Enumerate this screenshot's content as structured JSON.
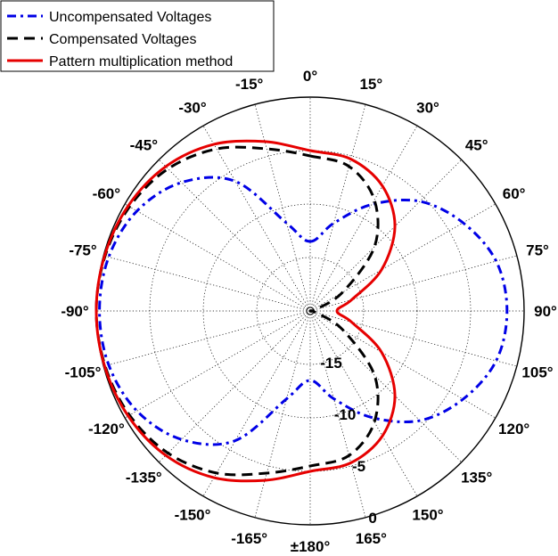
{
  "chart_data": {
    "type": "polar",
    "angle_unit": "degrees",
    "zero_direction": "top",
    "rlim_db": [
      -20,
      0
    ],
    "r_ticks": [
      -15,
      -10,
      -5,
      0
    ],
    "r_tick_labels": [
      "-15",
      "-10",
      "-5",
      "0"
    ],
    "angle_tick_labels": [
      {
        "angle": 0,
        "label": "0°"
      },
      {
        "angle": 15,
        "label": "15°"
      },
      {
        "angle": 30,
        "label": "30°"
      },
      {
        "angle": 45,
        "label": "45°"
      },
      {
        "angle": 60,
        "label": "60°"
      },
      {
        "angle": 75,
        "label": "75°"
      },
      {
        "angle": 90,
        "label": "90°"
      },
      {
        "angle": 105,
        "label": "105°"
      },
      {
        "angle": 120,
        "label": "120°"
      },
      {
        "angle": 135,
        "label": "135°"
      },
      {
        "angle": 150,
        "label": "150°"
      },
      {
        "angle": 165,
        "label": "165°"
      },
      {
        "angle": 180,
        "label": "±180°"
      },
      {
        "angle": -165,
        "label": "-165°"
      },
      {
        "angle": -150,
        "label": "-150°"
      },
      {
        "angle": -135,
        "label": "-135°"
      },
      {
        "angle": -120,
        "label": "-120°"
      },
      {
        "angle": -105,
        "label": "-105°"
      },
      {
        "angle": -90,
        "label": "-90°"
      },
      {
        "angle": -75,
        "label": "-75°"
      },
      {
        "angle": -60,
        "label": "-60°"
      },
      {
        "angle": -45,
        "label": "-45°"
      },
      {
        "angle": -30,
        "label": "-30°"
      },
      {
        "angle": -15,
        "label": "-15°"
      }
    ],
    "grid": true,
    "legend_position": "top-left",
    "series": [
      {
        "name": "Uncompensated Voltages",
        "color": "#0000e6",
        "style": "dash-dot",
        "points": [
          {
            "angle": 0,
            "db": -13.5
          },
          {
            "angle": 15,
            "db": -11.5
          },
          {
            "angle": 30,
            "db": -8.5
          },
          {
            "angle": 45,
            "db": -5.5
          },
          {
            "angle": 60,
            "db": -3.5
          },
          {
            "angle": 75,
            "db": -2.0
          },
          {
            "angle": 90,
            "db": -1.6
          },
          {
            "angle": 105,
            "db": -2.0
          },
          {
            "angle": 120,
            "db": -3.5
          },
          {
            "angle": 135,
            "db": -5.5
          },
          {
            "angle": 150,
            "db": -8.5
          },
          {
            "angle": 165,
            "db": -11.5
          },
          {
            "angle": 180,
            "db": -13.5
          },
          {
            "angle": -165,
            "db": -11.5
          },
          {
            "angle": -150,
            "db": -6.0
          },
          {
            "angle": -135,
            "db": -3.0
          },
          {
            "angle": -120,
            "db": -1.3
          },
          {
            "angle": -105,
            "db": -0.5
          },
          {
            "angle": -90,
            "db": -0.3
          },
          {
            "angle": -75,
            "db": -0.5
          },
          {
            "angle": -60,
            "db": -1.3
          },
          {
            "angle": -45,
            "db": -3.0
          },
          {
            "angle": -30,
            "db": -6.0
          },
          {
            "angle": -15,
            "db": -11.5
          }
        ]
      },
      {
        "name": "Compensated Voltages",
        "color": "#000000",
        "style": "dashed",
        "points": [
          {
            "angle": 0,
            "db": -5.5
          },
          {
            "angle": 15,
            "db": -6.0
          },
          {
            "angle": 30,
            "db": -8.0
          },
          {
            "angle": 45,
            "db": -11.5
          },
          {
            "angle": 60,
            "db": -16.5
          },
          {
            "angle": 75,
            "db": -19.5
          },
          {
            "angle": 90,
            "db": -20.0
          },
          {
            "angle": 105,
            "db": -19.5
          },
          {
            "angle": 120,
            "db": -16.5
          },
          {
            "angle": 135,
            "db": -11.5
          },
          {
            "angle": 150,
            "db": -8.0
          },
          {
            "angle": 165,
            "db": -6.0
          },
          {
            "angle": 180,
            "db": -5.5
          },
          {
            "angle": -165,
            "db": -4.3
          },
          {
            "angle": -150,
            "db": -2.5
          },
          {
            "angle": -135,
            "db": -1.2
          },
          {
            "angle": -120,
            "db": -0.5
          },
          {
            "angle": -105,
            "db": -0.15
          },
          {
            "angle": -90,
            "db": 0
          },
          {
            "angle": -75,
            "db": -0.15
          },
          {
            "angle": -60,
            "db": -0.5
          },
          {
            "angle": -45,
            "db": -1.2
          },
          {
            "angle": -30,
            "db": -2.5
          },
          {
            "angle": -15,
            "db": -4.3
          }
        ]
      },
      {
        "name": "Pattern multiplication method",
        "color": "#e60000",
        "style": "solid",
        "points": [
          {
            "angle": 0,
            "db": -5.0
          },
          {
            "angle": 15,
            "db": -5.3
          },
          {
            "angle": 30,
            "db": -6.5
          },
          {
            "angle": 45,
            "db": -8.8
          },
          {
            "angle": 60,
            "db": -12.3
          },
          {
            "angle": 75,
            "db": -16.0
          },
          {
            "angle": 90,
            "db": -17.5
          },
          {
            "angle": 105,
            "db": -16.0
          },
          {
            "angle": 120,
            "db": -12.3
          },
          {
            "angle": 135,
            "db": -8.8
          },
          {
            "angle": 150,
            "db": -6.5
          },
          {
            "angle": 165,
            "db": -5.3
          },
          {
            "angle": 180,
            "db": -5.0
          },
          {
            "angle": -165,
            "db": -3.6
          },
          {
            "angle": -150,
            "db": -2.0
          },
          {
            "angle": -135,
            "db": -0.9
          },
          {
            "angle": -120,
            "db": -0.35
          },
          {
            "angle": -105,
            "db": -0.1
          },
          {
            "angle": -90,
            "db": 0
          },
          {
            "angle": -75,
            "db": -0.1
          },
          {
            "angle": -60,
            "db": -0.35
          },
          {
            "angle": -45,
            "db": -0.9
          },
          {
            "angle": -30,
            "db": -2.0
          },
          {
            "angle": -15,
            "db": -3.6
          }
        ]
      }
    ]
  }
}
